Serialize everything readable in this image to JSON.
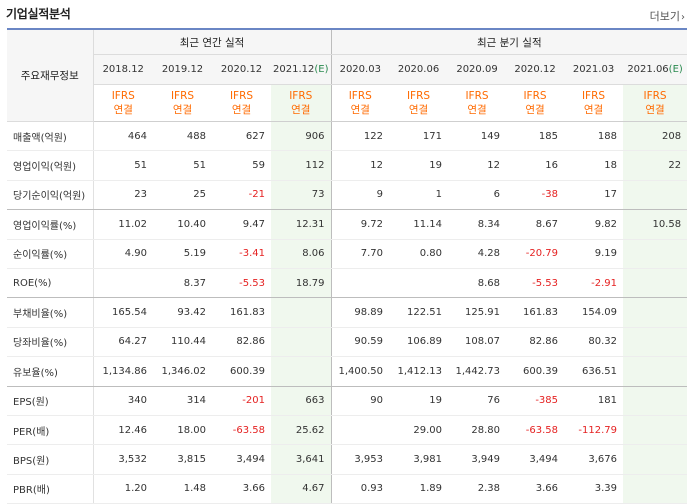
{
  "header": {
    "title": "기업실적분석",
    "more_label": "더보기",
    "more_icon": "chevron-right-icon"
  },
  "table": {
    "row_header_label": "주요재무정보",
    "annual_group_label": "최근 연간 실적",
    "quarter_group_label": "최근 분기 실적",
    "annual_periods": [
      "2018.12",
      "2019.12",
      "2020.12",
      "2021.12"
    ],
    "annual_estimate_mark": "(E)",
    "quarter_periods": [
      "2020.03",
      "2020.06",
      "2020.09",
      "2020.12",
      "2021.03",
      "2021.06"
    ],
    "quarter_estimate_mark": "(E)",
    "basis_line1": "IFRS",
    "basis_line2": "연결",
    "rows": [
      {
        "label": "매출액(억원)",
        "values": [
          "464",
          "488",
          "627",
          "906",
          "122",
          "171",
          "149",
          "185",
          "188",
          "208"
        ]
      },
      {
        "label": "영업이익(억원)",
        "values": [
          "51",
          "51",
          "59",
          "112",
          "12",
          "19",
          "12",
          "16",
          "18",
          "22"
        ]
      },
      {
        "label": "당기순이익(억원)",
        "values": [
          "23",
          "25",
          "-21",
          "73",
          "9",
          "1",
          "6",
          "-38",
          "17",
          ""
        ]
      },
      {
        "label": "영업이익률(%)",
        "values": [
          "11.02",
          "10.40",
          "9.47",
          "12.31",
          "9.72",
          "11.14",
          "8.34",
          "8.67",
          "9.82",
          "10.58"
        ]
      },
      {
        "label": "순이익률(%)",
        "values": [
          "4.90",
          "5.19",
          "-3.41",
          "8.06",
          "7.70",
          "0.80",
          "4.28",
          "-20.79",
          "9.19",
          ""
        ]
      },
      {
        "label": "ROE(%)",
        "values": [
          "",
          "8.37",
          "-5.53",
          "18.79",
          "",
          "",
          "8.68",
          "-5.53",
          "-2.91",
          ""
        ]
      },
      {
        "label": "부채비율(%)",
        "values": [
          "165.54",
          "93.42",
          "161.83",
          "",
          "98.89",
          "122.51",
          "125.91",
          "161.83",
          "154.09",
          ""
        ]
      },
      {
        "label": "당좌비율(%)",
        "values": [
          "64.27",
          "110.44",
          "82.86",
          "",
          "90.59",
          "106.89",
          "108.07",
          "82.86",
          "80.32",
          ""
        ]
      },
      {
        "label": "유보율(%)",
        "values": [
          "1,134.86",
          "1,346.02",
          "600.39",
          "",
          "1,400.50",
          "1,412.13",
          "1,442.73",
          "600.39",
          "636.51",
          ""
        ]
      },
      {
        "label": "EPS(원)",
        "values": [
          "340",
          "314",
          "-201",
          "663",
          "90",
          "19",
          "76",
          "-385",
          "181",
          ""
        ]
      },
      {
        "label": "PER(배)",
        "values": [
          "12.46",
          "18.00",
          "-63.58",
          "25.62",
          "",
          "29.00",
          "28.80",
          "-63.58",
          "-112.79",
          ""
        ]
      },
      {
        "label": "BPS(원)",
        "values": [
          "3,532",
          "3,815",
          "3,494",
          "3,641",
          "3,953",
          "3,981",
          "3,949",
          "3,494",
          "3,676",
          ""
        ]
      },
      {
        "label": "PBR(배)",
        "values": [
          "1.20",
          "1.48",
          "3.66",
          "4.67",
          "0.93",
          "1.89",
          "2.38",
          "3.66",
          "3.39",
          ""
        ]
      }
    ]
  },
  "colors": {
    "accent_border": "#6a86c4",
    "basis_text": "#ff6a00",
    "negative": "#e52222",
    "estimate_bg": "#f0f8ee",
    "estimate_mark": "#2a8a4f"
  }
}
